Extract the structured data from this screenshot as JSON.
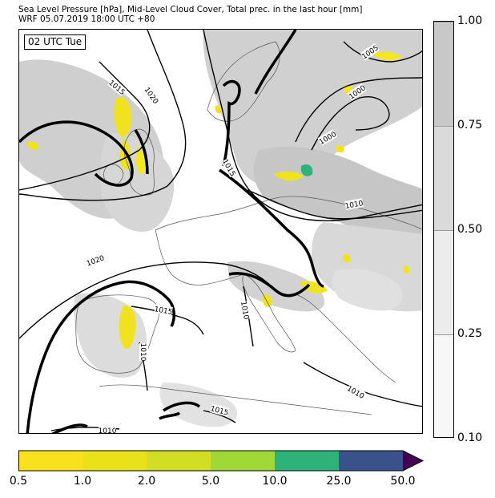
{
  "header": {
    "title_line1": "Sea Level Pressure [hPa], Mid-Level Cloud Cover, Total prec. in the last hour [mm]",
    "title_line2": "WRF 05.07.2019 18:00 UTC +80"
  },
  "map": {
    "time_badge": "02 UTC Tue",
    "isobar_labels": [
      "1015",
      "1020",
      "1005",
      "1000",
      "1000",
      "1015",
      "1010",
      "1020",
      "1015",
      "1010",
      "1010",
      "1010",
      "1015",
      "1010"
    ],
    "land_color": "#ffffff",
    "sea_color": "#ffffff",
    "coastline_color": "#555555",
    "isobar_color": "#000000"
  },
  "cloud_colorbar": {
    "ticks": [
      "1.00",
      "0.75",
      "0.50",
      "0.25",
      "0.10"
    ],
    "colors": [
      "#c8c8c8",
      "#dadada",
      "#ececec",
      "#f7f7f7"
    ]
  },
  "precip_colorbar": {
    "ticks": [
      "0.5",
      "1.0",
      "2.0",
      "5.0",
      "10.0",
      "25.0",
      "50.0"
    ],
    "colors": [
      "#f9e11e",
      "#e9e21a",
      "#d1de23",
      "#a0d937",
      "#2db37a",
      "#3a528b",
      "#440154"
    ]
  }
}
